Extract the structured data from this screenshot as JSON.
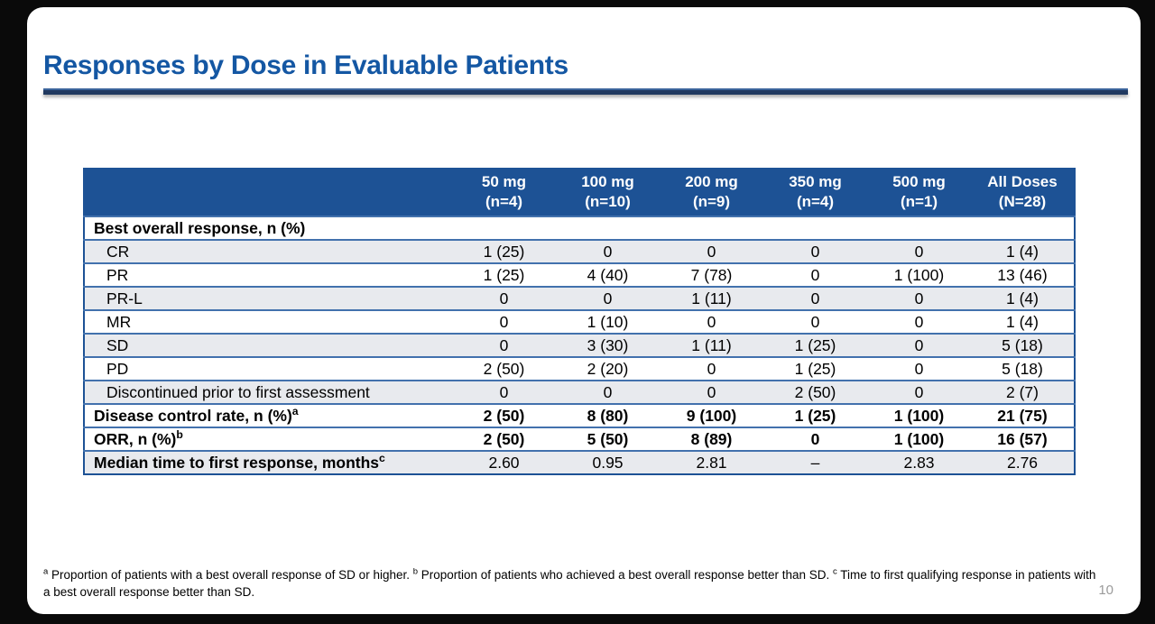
{
  "slide": {
    "title": "Responses by Dose in Evaluable Patients",
    "page_number": "10"
  },
  "colors": {
    "title_blue": "#1457a3",
    "rule_navy": "#20395f",
    "header_blue": "#1d5295",
    "row_divider_blue": "#4271ad",
    "stripe_gray": "#e8eaee",
    "page_number_gray": "#9b9b9b"
  },
  "table": {
    "columns": [
      {
        "dose": "50 mg",
        "n": "(n=4)"
      },
      {
        "dose": "100 mg",
        "n": "(n=10)"
      },
      {
        "dose": "200 mg",
        "n": "(n=9)"
      },
      {
        "dose": "350 mg",
        "n": "(n=4)"
      },
      {
        "dose": "500 mg",
        "n": "(n=1)"
      },
      {
        "dose": "All Doses",
        "n": "(N=28)"
      }
    ],
    "rows": [
      {
        "label": "Best overall response, n (%)",
        "sup": "",
        "indent": false,
        "bold_label": true,
        "bold_values": false,
        "shaded": false,
        "values": [
          "",
          "",
          "",
          "",
          "",
          ""
        ]
      },
      {
        "label": "CR",
        "sup": "",
        "indent": true,
        "bold_label": false,
        "bold_values": false,
        "shaded": true,
        "values": [
          "1 (25)",
          "0",
          "0",
          "0",
          "0",
          "1 (4)"
        ]
      },
      {
        "label": "PR",
        "sup": "",
        "indent": true,
        "bold_label": false,
        "bold_values": false,
        "shaded": false,
        "values": [
          "1 (25)",
          "4 (40)",
          "7 (78)",
          "0",
          "1 (100)",
          "13 (46)"
        ]
      },
      {
        "label": "PR-L",
        "sup": "",
        "indent": true,
        "bold_label": false,
        "bold_values": false,
        "shaded": true,
        "values": [
          "0",
          "0",
          "1 (11)",
          "0",
          "0",
          "1 (4)"
        ]
      },
      {
        "label": "MR",
        "sup": "",
        "indent": true,
        "bold_label": false,
        "bold_values": false,
        "shaded": false,
        "values": [
          "0",
          "1 (10)",
          "0",
          "0",
          "0",
          "1 (4)"
        ]
      },
      {
        "label": "SD",
        "sup": "",
        "indent": true,
        "bold_label": false,
        "bold_values": false,
        "shaded": true,
        "values": [
          "0",
          "3 (30)",
          "1 (11)",
          "1 (25)",
          "0",
          "5 (18)"
        ]
      },
      {
        "label": "PD",
        "sup": "",
        "indent": true,
        "bold_label": false,
        "bold_values": false,
        "shaded": false,
        "values": [
          "2 (50)",
          "2 (20)",
          "0",
          "1 (25)",
          "0",
          "5 (18)"
        ]
      },
      {
        "label": "Discontinued prior to first assessment",
        "sup": "",
        "indent": true,
        "bold_label": false,
        "bold_values": false,
        "shaded": true,
        "values": [
          "0",
          "0",
          "0",
          "2 (50)",
          "0",
          "2 (7)"
        ]
      },
      {
        "label": "Disease control rate, n (%)",
        "sup": "a",
        "indent": false,
        "bold_label": true,
        "bold_values": true,
        "shaded": false,
        "values": [
          "2 (50)",
          "8 (80)",
          "9 (100)",
          "1 (25)",
          "1 (100)",
          "21 (75)"
        ]
      },
      {
        "label": "ORR, n (%)",
        "sup": "b",
        "indent": false,
        "bold_label": true,
        "bold_values": true,
        "shaded": false,
        "values": [
          "2 (50)",
          "5 (50)",
          "8 (89)",
          "0",
          "1 (100)",
          "16 (57)"
        ]
      },
      {
        "label": "Median time to first response, months",
        "sup": "c",
        "indent": false,
        "bold_label": true,
        "bold_values": false,
        "shaded": true,
        "values": [
          "2.60",
          "0.95",
          "2.81",
          "–",
          "2.83",
          "2.76"
        ]
      }
    ]
  },
  "footnotes": [
    {
      "marker": "a",
      "text": "Proportion of patients with a best overall response of SD or higher."
    },
    {
      "marker": "b",
      "text": "Proportion of patients who achieved a best overall response better than SD."
    },
    {
      "marker": "c",
      "text": "Time to first qualifying response in patients with a best overall response better than SD."
    }
  ]
}
